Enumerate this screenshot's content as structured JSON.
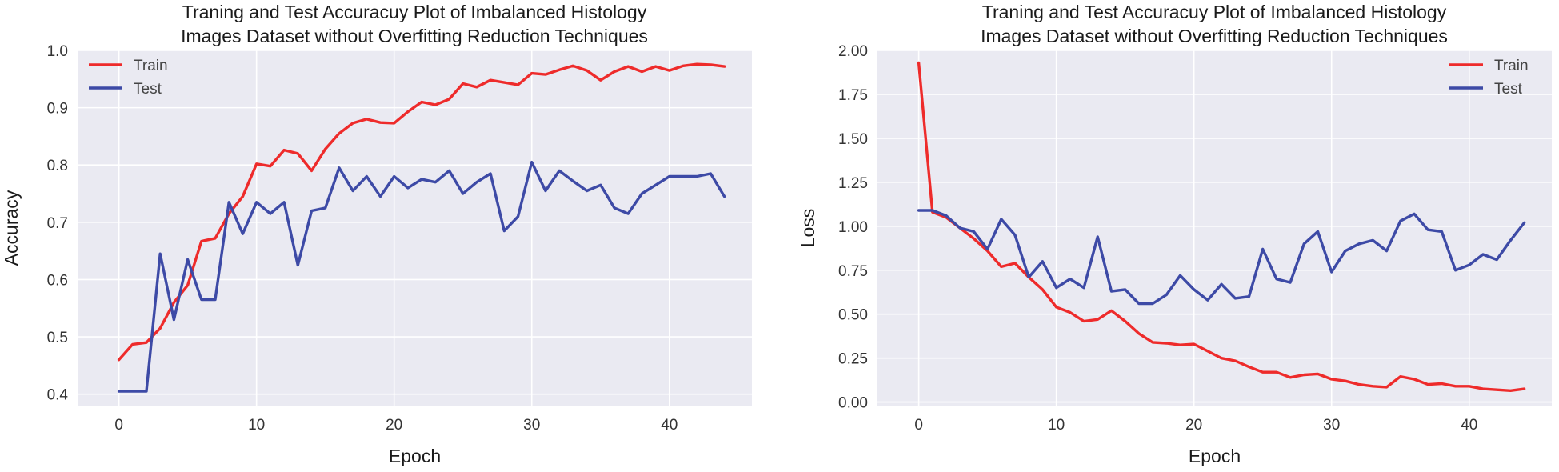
{
  "chart_data": [
    {
      "type": "line",
      "title": "Traning and Test Accuracuy Plot of Imbalanced Histology Images Dataset without Overfitting Reduction Techniques",
      "title_lines": [
        "Traning and Test Accuracuy Plot of Imbalanced Histology",
        "Images Dataset without Overfitting Reduction Techniques"
      ],
      "xlabel": "Epoch",
      "ylabel": "Accuracy",
      "xlim": [
        -3,
        46
      ],
      "ylim": [
        0.38,
        1.0
      ],
      "x_ticks": [
        0,
        10,
        20,
        30,
        40
      ],
      "y_ticks": [
        0.4,
        0.5,
        0.6,
        0.7,
        0.8,
        0.9,
        1.0
      ],
      "y_tick_labels": [
        "0.4",
        "0.5",
        "0.6",
        "0.7",
        "0.8",
        "0.9",
        "1.0"
      ],
      "grid": true,
      "legend_position": "top-left",
      "x": [
        0,
        1,
        2,
        3,
        4,
        5,
        6,
        7,
        8,
        9,
        10,
        11,
        12,
        13,
        14,
        15,
        16,
        17,
        18,
        19,
        20,
        21,
        22,
        23,
        24,
        25,
        26,
        27,
        28,
        29,
        30,
        31,
        32,
        33,
        34,
        35,
        36,
        37,
        38,
        39,
        40,
        41,
        42,
        43,
        44
      ],
      "series": [
        {
          "name": "Train",
          "color": "#ee2b2b",
          "values": [
            0.46,
            0.487,
            0.49,
            0.515,
            0.56,
            0.59,
            0.667,
            0.672,
            0.715,
            0.745,
            0.802,
            0.798,
            0.826,
            0.82,
            0.79,
            0.828,
            0.855,
            0.873,
            0.88,
            0.874,
            0.873,
            0.893,
            0.91,
            0.905,
            0.915,
            0.942,
            0.936,
            0.948,
            0.944,
            0.94,
            0.96,
            0.958,
            0.966,
            0.973,
            0.965,
            0.948,
            0.963,
            0.972,
            0.963,
            0.972,
            0.965,
            0.973,
            0.976,
            0.975,
            0.972
          ]
        },
        {
          "name": "Test",
          "color": "#3d4aa6",
          "values": [
            0.405,
            0.405,
            0.405,
            0.645,
            0.53,
            0.635,
            0.565,
            0.565,
            0.735,
            0.68,
            0.735,
            0.715,
            0.735,
            0.625,
            0.72,
            0.725,
            0.795,
            0.755,
            0.78,
            0.745,
            0.78,
            0.76,
            0.775,
            0.77,
            0.79,
            0.75,
            0.77,
            0.785,
            0.685,
            0.71,
            0.805,
            0.755,
            0.79,
            0.772,
            0.755,
            0.765,
            0.725,
            0.715,
            0.75,
            0.765,
            0.78,
            0.78,
            0.78,
            0.785,
            0.745
          ]
        }
      ]
    },
    {
      "type": "line",
      "title": "Traning and Test Accuracuy Plot of Imbalanced Histology Images Dataset without Overfitting Reduction Techniques",
      "title_lines": [
        "Traning and Test Accuracuy Plot of Imbalanced Histology",
        "Images Dataset without Overfitting Reduction Techniques"
      ],
      "xlabel": "Epoch",
      "ylabel": "Loss",
      "xlim": [
        -3,
        46
      ],
      "ylim": [
        -0.02,
        2.0
      ],
      "x_ticks": [
        0,
        10,
        20,
        30,
        40
      ],
      "y_ticks": [
        0.0,
        0.25,
        0.5,
        0.75,
        1.0,
        1.25,
        1.5,
        1.75,
        2.0
      ],
      "y_tick_labels": [
        "0.00",
        "0.25",
        "0.50",
        "0.75",
        "1.00",
        "1.25",
        "1.50",
        "1.75",
        "2.00"
      ],
      "grid": true,
      "legend_position": "top-right",
      "x": [
        0,
        1,
        2,
        3,
        4,
        5,
        6,
        7,
        8,
        9,
        10,
        11,
        12,
        13,
        14,
        15,
        16,
        17,
        18,
        19,
        20,
        21,
        22,
        23,
        24,
        25,
        26,
        27,
        28,
        29,
        30,
        31,
        32,
        33,
        34,
        35,
        36,
        37,
        38,
        39,
        40,
        41,
        42,
        43,
        44
      ],
      "series": [
        {
          "name": "Train",
          "color": "#ee2b2b",
          "values": [
            1.93,
            1.08,
            1.05,
            0.99,
            0.93,
            0.86,
            0.77,
            0.79,
            0.71,
            0.64,
            0.54,
            0.51,
            0.46,
            0.47,
            0.52,
            0.46,
            0.39,
            0.34,
            0.335,
            0.325,
            0.33,
            0.29,
            0.25,
            0.235,
            0.2,
            0.17,
            0.17,
            0.14,
            0.155,
            0.16,
            0.13,
            0.12,
            0.1,
            0.09,
            0.085,
            0.145,
            0.13,
            0.1,
            0.105,
            0.09,
            0.09,
            0.075,
            0.07,
            0.065,
            0.075
          ]
        },
        {
          "name": "Test",
          "color": "#3d4aa6",
          "values": [
            1.09,
            1.09,
            1.06,
            0.99,
            0.97,
            0.87,
            1.04,
            0.95,
            0.71,
            0.8,
            0.65,
            0.7,
            0.65,
            0.94,
            0.63,
            0.64,
            0.56,
            0.56,
            0.61,
            0.72,
            0.64,
            0.58,
            0.67,
            0.59,
            0.6,
            0.87,
            0.7,
            0.68,
            0.9,
            0.97,
            0.74,
            0.86,
            0.9,
            0.92,
            0.86,
            1.03,
            1.07,
            0.98,
            0.97,
            0.75,
            0.78,
            0.84,
            0.81,
            0.92,
            1.02
          ]
        }
      ]
    }
  ]
}
